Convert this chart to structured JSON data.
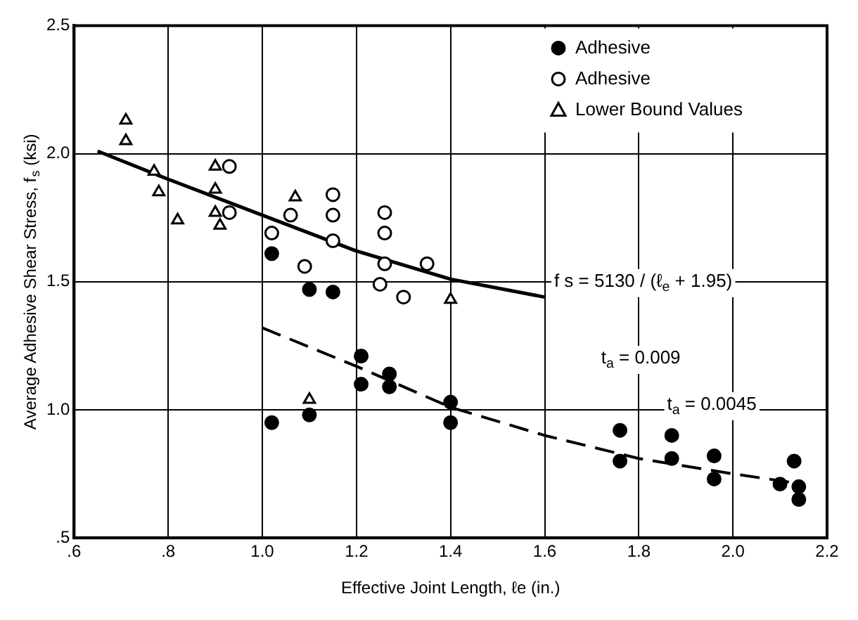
{
  "chart_data": {
    "type": "scatter",
    "xlabel": "Effective Joint Length, ℓe (in.)",
    "ylabel": "Average Adhesive Shear Stress, f$_{s}$ (ksi)",
    "xlim": [
      0.6,
      2.2
    ],
    "ylim": [
      0.5,
      2.5
    ],
    "xticks": [
      {
        "value": 0.6,
        "label": ".6"
      },
      {
        "value": 0.8,
        "label": ".8"
      },
      {
        "value": 1.0,
        "label": "1.0"
      },
      {
        "value": 1.2,
        "label": "1.2"
      },
      {
        "value": 1.4,
        "label": "1.4"
      },
      {
        "value": 1.6,
        "label": "1.6"
      },
      {
        "value": 1.8,
        "label": "1.8"
      },
      {
        "value": 2.0,
        "label": "2.0"
      },
      {
        "value": 2.2,
        "label": "2.2"
      }
    ],
    "yticks": [
      {
        "value": 0.5,
        "label": ".5"
      },
      {
        "value": 1.0,
        "label": "1.0"
      },
      {
        "value": 1.5,
        "label": "1.5"
      },
      {
        "value": 2.0,
        "label": "2.0"
      },
      {
        "value": 2.5,
        "label": "2.5"
      }
    ],
    "grid": true,
    "legend": "top right",
    "series": [
      {
        "name": "Adhesive",
        "color": "#000000",
        "marker": "circle",
        "x": [
          1.02,
          1.1,
          1.15,
          1.21,
          1.21,
          1.27,
          1.27,
          1.4,
          1.4,
          1.02,
          1.1,
          1.76,
          1.76,
          1.87,
          1.87,
          1.96,
          1.96,
          2.13,
          2.1,
          2.14,
          2.14
        ],
        "values": [
          1.61,
          1.47,
          1.46,
          1.21,
          1.1,
          1.14,
          1.09,
          1.03,
          0.95,
          0.95,
          0.98,
          0.92,
          0.8,
          0.9,
          0.81,
          0.82,
          0.73,
          0.8,
          0.71,
          0.7,
          0.65
        ]
      },
      {
        "name": "Adhesive",
        "color": "#ffffff",
        "marker": "circle",
        "x": [
          0.93,
          0.93,
          1.02,
          1.06,
          1.09,
          1.15,
          1.15,
          1.15,
          1.26,
          1.26,
          1.26,
          1.25,
          1.3,
          1.35
        ],
        "values": [
          1.95,
          1.77,
          1.69,
          1.76,
          1.56,
          1.84,
          1.76,
          1.66,
          1.77,
          1.69,
          1.57,
          1.49,
          1.44,
          1.57
        ]
      },
      {
        "name": "Lower Bound Values",
        "color": "#ffffff",
        "marker": "triangle",
        "x": [
          0.71,
          0.71,
          0.77,
          0.78,
          0.82,
          0.9,
          0.9,
          0.9,
          0.91,
          1.07,
          1.4,
          1.1
        ],
        "values": [
          2.13,
          2.05,
          1.93,
          1.85,
          1.74,
          1.95,
          1.86,
          1.77,
          1.72,
          1.83,
          1.43,
          1.04
        ]
      },
      {
        "type": "line",
        "color": "#000000",
        "line_style": "solid",
        "x": [
          0.65,
          0.8,
          1.0,
          1.2,
          1.4,
          1.6
        ],
        "values": [
          2.01,
          1.9,
          1.76,
          1.62,
          1.51,
          1.44
        ]
      },
      {
        "type": "line",
        "color": "#000000",
        "line_style": "dashed",
        "x": [
          1.0,
          1.2,
          1.4,
          1.6,
          1.8,
          2.0,
          2.15
        ],
        "values": [
          1.32,
          1.17,
          1.01,
          0.9,
          0.81,
          0.75,
          0.71
        ]
      }
    ],
    "annotations": [
      "f s = 5130 / (ℓ$_{e}$ + 1.95)",
      "t$_{a}$ = 0.009",
      "t$_{a}$ = 0.0045"
    ]
  }
}
